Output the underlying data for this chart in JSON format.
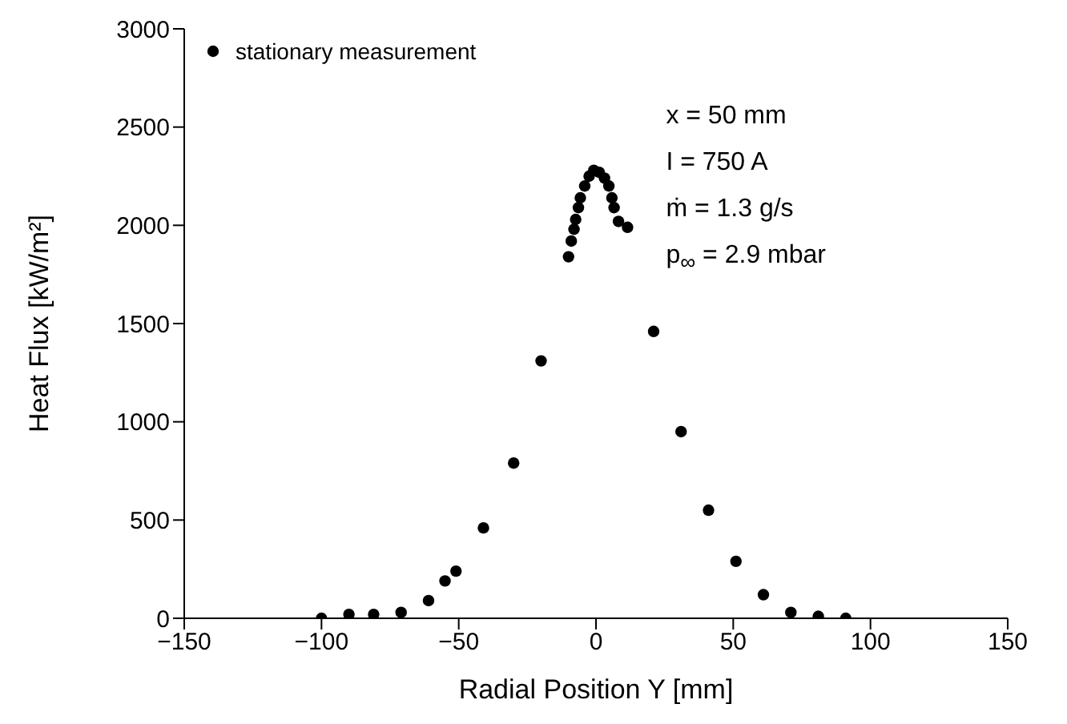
{
  "chart_data": {
    "type": "scatter",
    "xlabel": "Radial Position Y [mm]",
    "ylabel": "Heat Flux [kW/m²]",
    "xlim": [
      -150,
      150
    ],
    "xticks": [
      -150,
      -100,
      -50,
      0,
      50,
      100,
      150
    ],
    "ylim": [
      0,
      3000
    ],
    "yticks": [
      0,
      500,
      1000,
      1500,
      2000,
      2500,
      3000
    ],
    "grid": false,
    "legend": "top left",
    "marker": "circle",
    "annotations": [
      "x = 50 mm",
      "I = 750 A",
      "ṁ = 1.3 g/s",
      "p$_{∞}$ = 2.9 mbar"
    ],
    "series": [
      {
        "name": "stationary measurement",
        "color": "#000000",
        "x": [
          -100,
          -90,
          -81,
          -71,
          -61,
          -55,
          -51,
          -41,
          -30,
          -20,
          -10,
          -9,
          -8,
          -7.4,
          -6.4,
          -5.7,
          -4.1,
          -2.5,
          -0.8,
          1.2,
          3.1,
          4.7,
          5.8,
          6.6,
          8.2,
          11.5,
          21,
          31,
          41,
          51,
          61,
          71,
          81,
          91
        ],
        "values": [
          0,
          20,
          20,
          30,
          90,
          190,
          240,
          460,
          790,
          1310,
          1840,
          1920,
          1980,
          2030,
          2090,
          2140,
          2200,
          2250,
          2280,
          2270,
          2240,
          2200,
          2140,
          2090,
          2020,
          1990,
          1460,
          950,
          550,
          290,
          120,
          30,
          10,
          0
        ]
      }
    ]
  }
}
